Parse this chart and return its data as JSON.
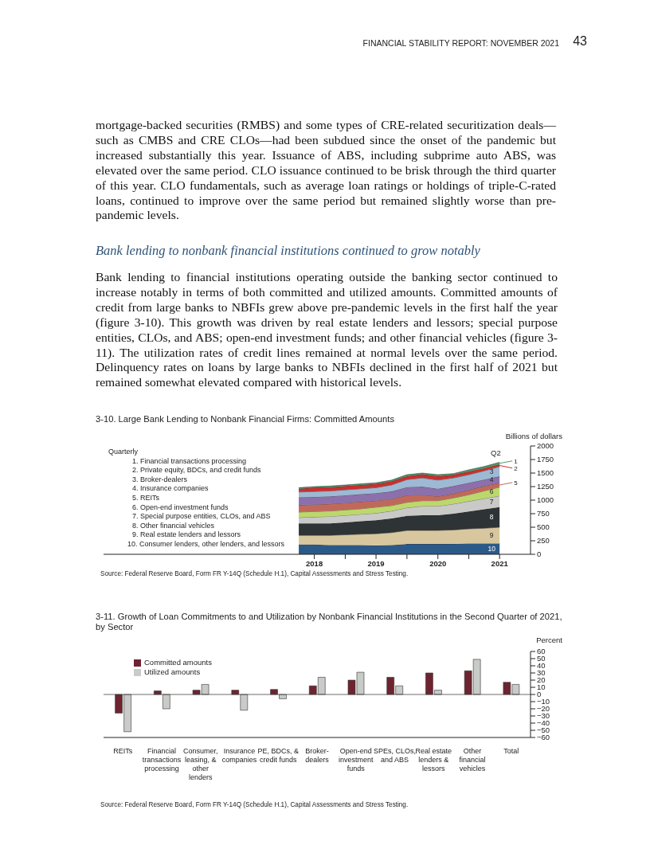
{
  "chart_data": [
    {
      "type": "other",
      "title": "Bank lending to nonbank financial institutions continued to grow notably",
      "annotations": [
        "FINANCIAL STABILITY REPORT:  NOVEMBER 2021",
        "43",
        "mortgage-backed securities (RMBS) and some types of CRE-related securitization deals—such as CMBS and CRE CLOs—had been subdued since the onset of the pandemic but increased substantially this year. Issuance of ABS, including subprime auto ABS, was elevated over the same period. CLO issuance continued to be brisk through the third quarter of this year. CLO fundamentals, such as average loan ratings or holdings of triple-C-rated loans, continued to improve over the same period but remained slightly worse than pre-pandemic levels.",
        "Bank lending to financial institutions operating outside the banking sector continued to increase notably in terms of both committed and utilized amounts. Committed amounts of credit from large banks to NBFIs grew above pre-pandemic levels in the first half the year (figure 3-10). This growth was driven by real estate lenders and lessors; special purpose entities, CLOs, and ABS; open-end investment funds; and other financial vehicles (figure 3-11). The utilization rates of credit lines remained at normal levels over the same period. Delinquency rates on loans by large banks to NBFIs declined in the first half of 2021 but remained somewhat elevated compared with historical levels."
      ]
    },
    {
      "type": "area",
      "title": "3-10. Large Bank Lending to Nonbank Financial Firms: Committed Amounts",
      "ylabel": "Billions of dollars",
      "stacked": true,
      "legend": "right",
      "x": [
        "2018-03",
        "2018-06",
        "2018-09",
        "2018-12",
        "2019-03",
        "2019-06",
        "2019-09",
        "2019-12",
        "2020-03",
        "2020-06",
        "2020-09",
        "2020-12",
        "2021-03",
        "2021-06"
      ],
      "xlim": [
        "2015-01",
        "2021-12"
      ],
      "xticks": [
        {
          "value": "2018-06",
          "label": "2018"
        },
        {
          "value": "2018-12",
          "label": null
        },
        {
          "value": "2019-06",
          "label": "2019"
        },
        {
          "value": "2019-12",
          "label": null
        },
        {
          "value": "2020-06",
          "label": "2020"
        },
        {
          "value": "2020-12",
          "label": null
        },
        {
          "value": "2021-06",
          "label": "2021"
        }
      ],
      "ylim": [
        0,
        2000
      ],
      "yticks": [
        0,
        250,
        500,
        750,
        1000,
        1250,
        1500,
        1750,
        2000
      ],
      "series": [
        {
          "name": "10",
          "color": "#2c5a88",
          "values": [
            180,
            180,
            170,
            170,
            170,
            160,
            170,
            190,
            190,
            190,
            190,
            200,
            200,
            200
          ]
        },
        {
          "name": "9",
          "color": "#d8c79e",
          "values": [
            170,
            170,
            180,
            190,
            200,
            220,
            230,
            250,
            250,
            250,
            260,
            270,
            280,
            300
          ]
        },
        {
          "name": "8",
          "color": "#2e3335",
          "values": [
            220,
            220,
            220,
            230,
            240,
            250,
            260,
            270,
            280,
            280,
            300,
            320,
            350,
            370
          ]
        },
        {
          "name": "7",
          "color": "#c9c9c7",
          "values": [
            110,
            120,
            130,
            130,
            130,
            130,
            140,
            150,
            170,
            170,
            180,
            190,
            200,
            210
          ]
        },
        {
          "name": "6",
          "color": "#bcd86c",
          "values": [
            100,
            100,
            100,
            100,
            100,
            110,
            100,
            100,
            100,
            100,
            110,
            120,
            140,
            160
          ]
        },
        {
          "name": "5",
          "color": "#c0695b",
          "values": [
            130,
            130,
            130,
            130,
            130,
            120,
            120,
            130,
            110,
            80,
            80,
            90,
            90,
            80
          ]
        },
        {
          "name": "4",
          "color": "#8b70ac",
          "values": [
            140,
            140,
            140,
            140,
            140,
            140,
            140,
            150,
            150,
            140,
            140,
            130,
            120,
            120
          ]
        },
        {
          "name": "3",
          "color": "#9db9d3",
          "values": [
            100,
            100,
            100,
            100,
            100,
            100,
            120,
            140,
            160,
            160,
            150,
            150,
            160,
            180
          ]
        },
        {
          "name": "2",
          "color": "#c8302e",
          "values": [
            60,
            70,
            70,
            70,
            70,
            70,
            70,
            60,
            70,
            70,
            60,
            60,
            50,
            40
          ]
        },
        {
          "name": "1",
          "color": "#4b9a6b",
          "values": [
            20,
            20,
            20,
            20,
            20,
            20,
            20,
            30,
            20,
            30,
            20,
            30,
            30,
            40
          ]
        }
      ],
      "annotations": [
        "Quarterly",
        "1. Financial transactions processing",
        "2. Private equity, BDCs, and credit funds",
        "3. Broker-dealers",
        "4. Insurance companies",
        "5. REITs",
        "6. Open-end investment funds",
        "7. Special purpose entities, CLOs, and ABS",
        "8. Other financial vehicles",
        "9. Real estate lenders and lessors",
        "10. Consumer lenders, other lenders, and lessors",
        "Q2",
        "Source: Federal Reserve Board, Form FR Y-14Q (Schedule H.1), Capital Assessments and Stress Testing."
      ]
    },
    {
      "type": "bar",
      "title": "3-11. Growth of Loan Commitments to and Utilization by Nonbank Financial Institutions in the Second Quarter of 2021, by Sector",
      "ylabel": "Percent",
      "legend": "top left",
      "categories": [
        "REITs",
        "Financial transactions processing",
        "Consumer, leasing, & other lenders",
        "Insurance companies",
        "PE, BDCs, & credit funds",
        "Broker-dealers",
        "Open-end investment funds",
        "SPEs, CLOs, and ABS",
        "Real estate lenders & lessors",
        "Other financial vehicles",
        "Total"
      ],
      "series": [
        {
          "name": "Committed amounts",
          "color": "#6e2430",
          "values": [
            -26,
            5,
            6,
            6,
            7,
            12,
            20,
            24,
            30,
            33,
            17
          ]
        },
        {
          "name": "Utilized amounts",
          "color": "#c9cbc8",
          "values": [
            -52,
            -20,
            14,
            -22,
            -6,
            24,
            31,
            12,
            6,
            49,
            14
          ]
        }
      ],
      "ylim": [
        -60,
        60
      ],
      "yticks": [
        {
          "value": -60,
          "label": "−60"
        },
        {
          "value": -50,
          "label": "−50"
        },
        {
          "value": -40,
          "label": "−40"
        },
        {
          "value": -30,
          "label": "−30"
        },
        {
          "value": -20,
          "label": "−20"
        },
        {
          "value": -10,
          "label": "−10"
        },
        0,
        10,
        20,
        30,
        40,
        50,
        60
      ],
      "ref_lines": [
        {
          "axis": "y",
          "value": 0
        }
      ],
      "annotations": [
        "Source: Federal Reserve Board, Form FR Y-14Q (Schedule H.1), Capital Assessments and Stress Testing."
      ]
    }
  ]
}
